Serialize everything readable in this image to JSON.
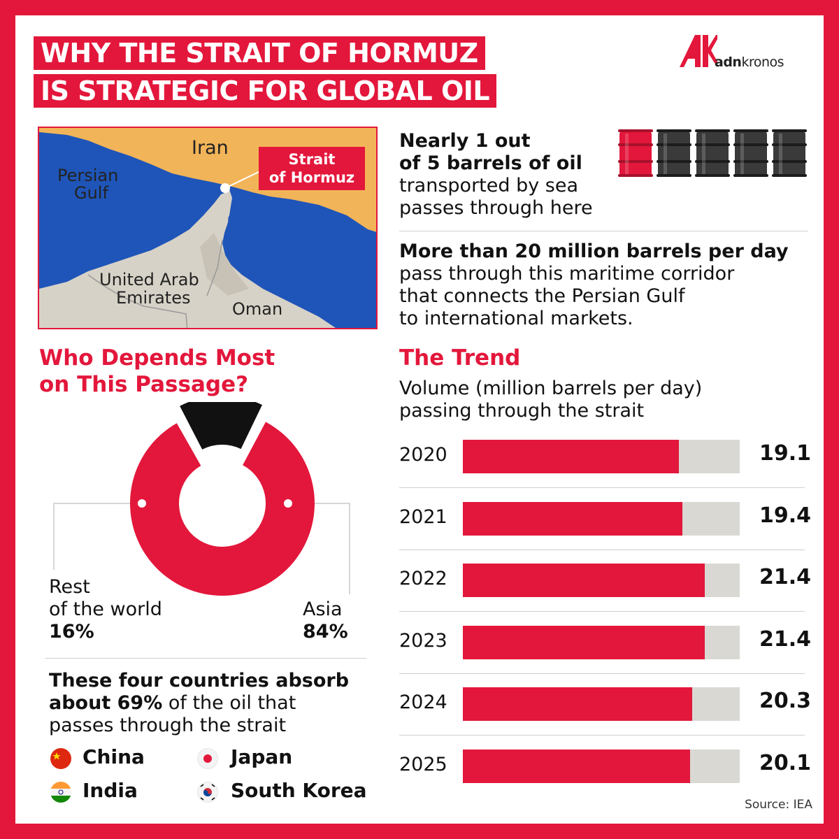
{
  "header": {
    "title_line1": "WHY THE STRAIT OF HORMUZ",
    "title_line2": "IS STRATEGIC FOR GLOBAL OIL",
    "logo_text_bold": "adn",
    "logo_text": "kronos"
  },
  "map": {
    "iran": "Iran",
    "persian_gulf_1": "Persian",
    "persian_gulf_2": "Gulf",
    "uae_1": "United Arab",
    "uae_2": "Emirates",
    "oman": "Oman",
    "strait_1": "Strait",
    "strait_2": "of Hormuz"
  },
  "barrels": {
    "line1": "Nearly 1 out",
    "line2": "of 5 barrels of oil",
    "line3": "transported by sea",
    "line4": "passes through here",
    "highlighted": 1,
    "total": 5
  },
  "volume": {
    "bold": "More than 20 million barrels per day",
    "line2": "pass through this maritime corridor",
    "line3": "that connects the Persian Gulf",
    "line4": "to international markets."
  },
  "depends": {
    "heading1": "Who Depends Most",
    "heading2": "on This Passage?",
    "rest_label1": "Rest",
    "rest_label2": "of the world",
    "rest_pct": "16%",
    "asia_label": "Asia",
    "asia_pct": "84%"
  },
  "countries": {
    "line1": "These four countries absorb",
    "line2_bold": "about 69%",
    "line2": " of the oil that",
    "line3": "passes through the strait",
    "list": [
      "China",
      "Japan",
      "India",
      "South Korea"
    ]
  },
  "trend": {
    "heading": "The Trend",
    "sub1": "Volume (million barrels per day)",
    "sub2": "passing through the strait"
  },
  "source": "Source: IEA",
  "colors": {
    "accent": "#e3173b",
    "bar_bg": "#d9d8d3",
    "dark": "#111111"
  },
  "chart_data": [
    {
      "type": "pie",
      "title": "Who Depends Most on This Passage?",
      "categories": [
        "Asia",
        "Rest of the world"
      ],
      "values": [
        84,
        16
      ],
      "unit": "%"
    },
    {
      "type": "bar",
      "title": "The Trend",
      "subtitle": "Volume (million barrels per day) passing through the strait",
      "orientation": "horizontal",
      "categories": [
        "2020",
        "2021",
        "2022",
        "2023",
        "2024",
        "2025"
      ],
      "values": [
        19.1,
        19.4,
        21.4,
        21.4,
        20.3,
        20.1
      ],
      "value_labels": [
        "19.1",
        "19.4",
        "21.4",
        "21.4",
        "20.3",
        "20.1"
      ],
      "xlim": [
        0,
        24.5
      ]
    }
  ]
}
